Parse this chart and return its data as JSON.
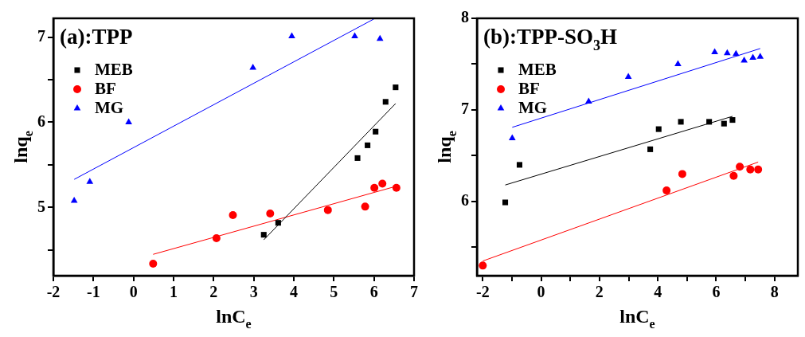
{
  "chart_data": [
    {
      "type": "scatter",
      "title": "(a):TPP",
      "xlabel": "lnC$_{e}$",
      "ylabel": "lnq$_{e}$",
      "legend": "top left",
      "grid": false,
      "xlim": [
        -2,
        7
      ],
      "xticks": [
        -2,
        -1,
        0,
        1,
        2,
        3,
        4,
        5,
        6,
        7
      ],
      "ylim": [
        4.2,
        7.22
      ],
      "yticks": [
        {
          "value": 4.5,
          "label": null
        },
        5,
        {
          "value": 5.5,
          "label": null
        },
        6,
        {
          "value": 6.5,
          "label": null
        },
        7
      ],
      "series": [
        {
          "name": "MEB",
          "color": "#000000",
          "marker": "square",
          "x": [
            3.25,
            3.61,
            5.59,
            5.84,
            6.04,
            6.29,
            6.54
          ],
          "values": [
            4.68,
            4.82,
            5.58,
            5.73,
            5.89,
            6.24,
            6.41
          ]
        },
        {
          "name": "BF",
          "color": "#ff0000",
          "marker": "circle",
          "x": [
            0.49,
            2.07,
            2.48,
            3.41,
            4.85,
            5.78,
            6.01,
            6.21,
            6.56
          ],
          "values": [
            4.34,
            4.64,
            4.91,
            4.93,
            4.97,
            5.01,
            5.23,
            5.28,
            5.23
          ]
        },
        {
          "name": "MG",
          "color": "#0000ff",
          "marker": "triangle",
          "x": [
            -1.48,
            -1.09,
            -0.12,
            2.98,
            3.95,
            5.52,
            6.15
          ],
          "values": [
            5.08,
            5.3,
            6.0,
            6.64,
            7.01,
            7.01,
            6.98
          ]
        },
        {
          "type": "line",
          "color": "#000000",
          "x": [
            3.25,
            6.54
          ],
          "values": [
            4.62,
            6.22
          ]
        },
        {
          "type": "line",
          "color": "#ff0000",
          "x": [
            0.49,
            6.56
          ],
          "values": [
            4.45,
            5.25
          ]
        },
        {
          "type": "line",
          "color": "#0000ff",
          "x": [
            -1.48,
            5.99
          ],
          "values": [
            5.33,
            7.21
          ]
        }
      ]
    },
    {
      "type": "scatter",
      "title": "(b):TPP-SO$_{3}$H",
      "xlabel": "lnC$_{e}$",
      "ylabel": "lnq$_{e}$",
      "legend": "top left",
      "grid": false,
      "xlim": [
        -2.2,
        8.8
      ],
      "xticks": [
        -2,
        {
          "value": -1,
          "label": null
        },
        0,
        {
          "value": 1,
          "label": null
        },
        2,
        {
          "value": 3,
          "label": null
        },
        4,
        {
          "value": 5,
          "label": null
        },
        6,
        {
          "value": 7,
          "label": null
        },
        8
      ],
      "ylim": [
        5.19,
        8
      ],
      "yticks": [
        {
          "value": 5.5,
          "label": null
        },
        6,
        {
          "value": 6.5,
          "label": null
        },
        7,
        {
          "value": 7.5,
          "label": null
        },
        8
      ],
      "series": [
        {
          "name": "MEB",
          "color": "#000000",
          "marker": "square",
          "x": [
            -1.23,
            -0.74,
            3.74,
            4.03,
            4.79,
            5.76,
            6.27,
            6.56
          ],
          "values": [
            5.99,
            6.4,
            6.57,
            6.79,
            6.87,
            6.87,
            6.85,
            6.89
          ]
        },
        {
          "name": "BF",
          "color": "#ff0000",
          "marker": "circle",
          "x": [
            -2.0,
            4.3,
            4.84,
            6.6,
            6.81,
            7.17,
            7.44
          ],
          "values": [
            5.3,
            6.12,
            6.3,
            6.28,
            6.38,
            6.35,
            6.35
          ]
        },
        {
          "name": "MG",
          "color": "#0000ff",
          "marker": "triangle",
          "x": [
            -0.99,
            1.63,
            2.99,
            4.69,
            5.95,
            6.38,
            6.68,
            6.96,
            7.26,
            7.51
          ],
          "values": [
            6.69,
            7.09,
            7.36,
            7.5,
            7.63,
            7.62,
            7.61,
            7.54,
            7.57,
            7.58
          ]
        },
        {
          "type": "line",
          "color": "#000000",
          "x": [
            -1.23,
            6.56
          ],
          "values": [
            6.18,
            6.93
          ]
        },
        {
          "type": "line",
          "color": "#ff0000",
          "x": [
            -2.0,
            7.44
          ],
          "values": [
            5.35,
            6.43
          ]
        },
        {
          "type": "line",
          "color": "#0000ff",
          "x": [
            -0.99,
            7.51
          ],
          "values": [
            6.81,
            7.67
          ]
        }
      ]
    }
  ]
}
